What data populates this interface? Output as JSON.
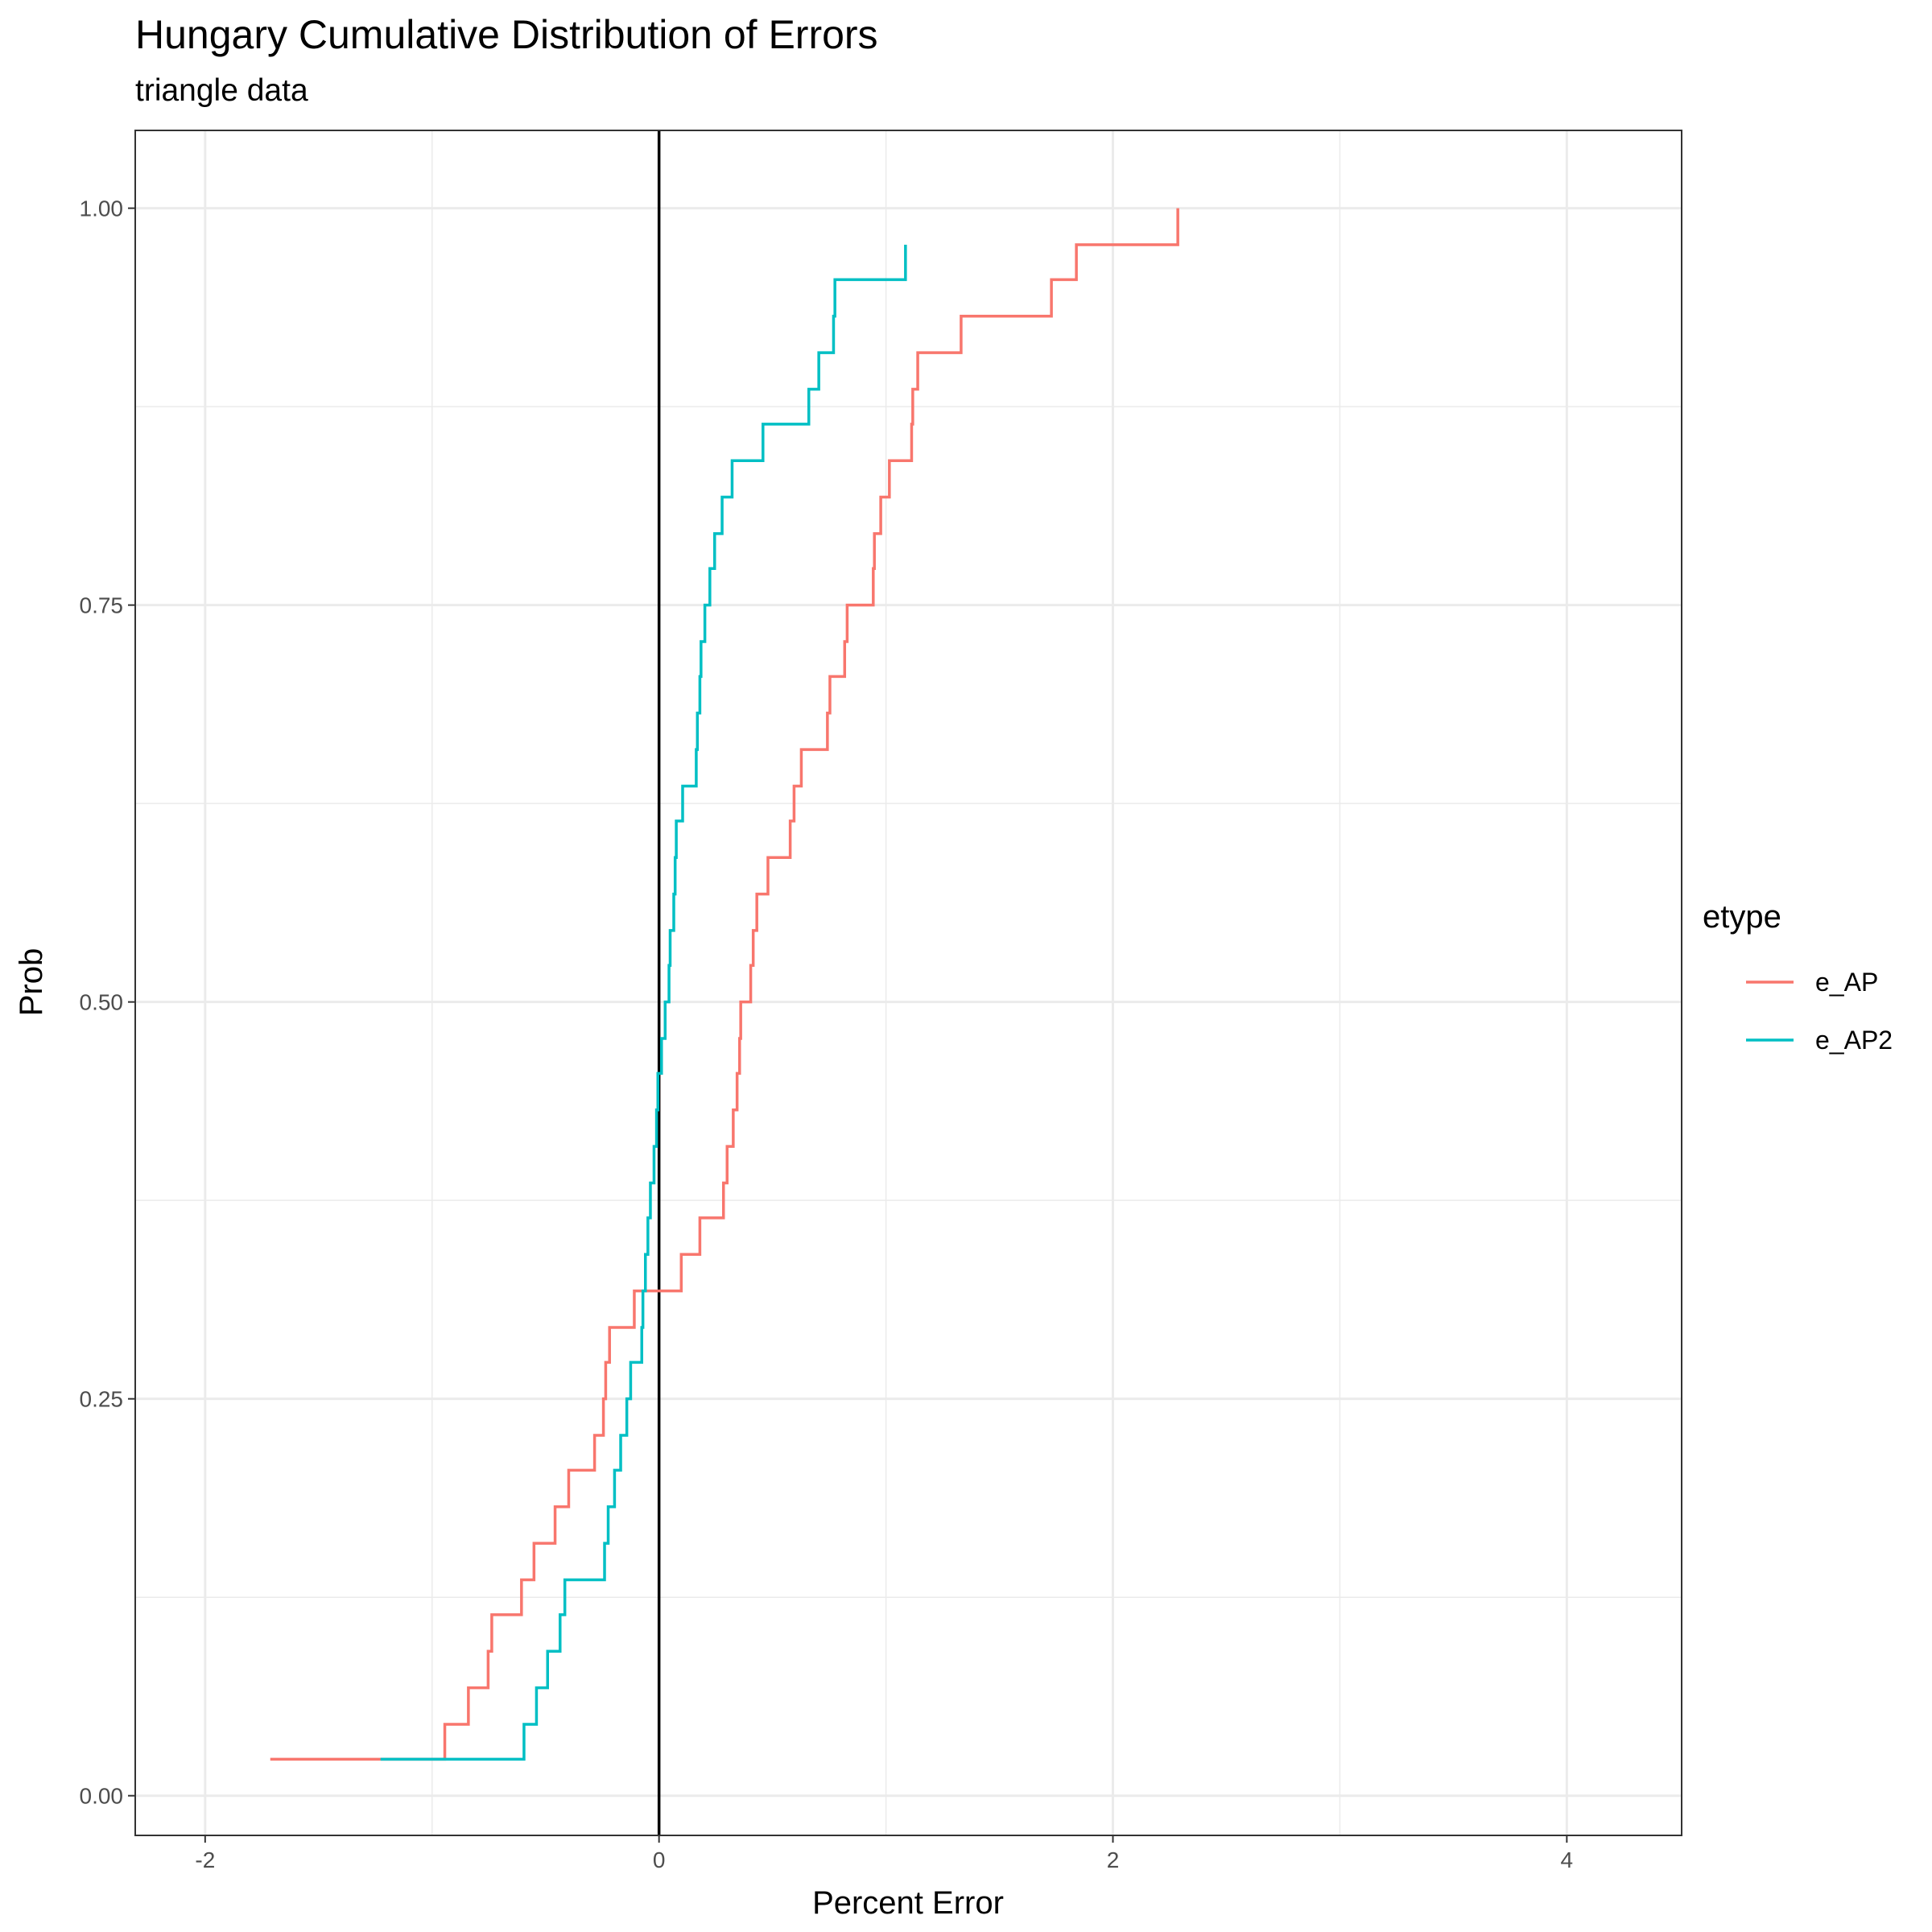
{
  "chart_data": {
    "type": "step",
    "title": "Hungary Cumulative Distribution of Errors",
    "subtitle": "triangle data",
    "x_label": "Percent Error",
    "y_label": "Prob",
    "legend_title": "etype",
    "legend_position": "right",
    "grid": true,
    "xintercept": 0,
    "xlim": [
      -2.308,
      4.506
    ],
    "ylim": [
      -0.025,
      1.049
    ],
    "xticks": [
      -2,
      0,
      2,
      4
    ],
    "yticks": [
      {
        "value": 0,
        "label": "0.00"
      },
      0.25,
      {
        "value": 0.5,
        "label": "0.50"
      },
      0.75,
      {
        "value": 1,
        "label": "1.00"
      }
    ],
    "series": [
      {
        "name": "e_AP",
        "color": "#F8766D",
        "x": [
          -1.713,
          -0.944,
          -0.84,
          -0.753,
          -0.737,
          -0.606,
          -0.551,
          -0.458,
          -0.398,
          -0.284,
          -0.245,
          -0.235,
          -0.218,
          -0.109,
          0.098,
          0.18,
          0.284,
          0.3,
          0.327,
          0.344,
          0.355,
          0.36,
          0.404,
          0.415,
          0.431,
          0.48,
          0.578,
          0.595,
          0.627,
          0.742,
          0.753,
          0.818,
          0.829,
          0.944,
          0.949,
          0.977,
          1.015,
          1.113,
          1.118,
          1.14,
          1.331,
          1.729,
          1.839,
          2.286
        ],
        "values": [
          0.023,
          0.045,
          0.068,
          0.091,
          0.114,
          0.136,
          0.159,
          0.182,
          0.205,
          0.227,
          0.25,
          0.273,
          0.295,
          0.318,
          0.341,
          0.364,
          0.386,
          0.409,
          0.432,
          0.455,
          0.477,
          0.5,
          0.523,
          0.545,
          0.568,
          0.591,
          0.614,
          0.636,
          0.659,
          0.682,
          0.705,
          0.727,
          0.75,
          0.773,
          0.795,
          0.818,
          0.841,
          0.864,
          0.886,
          0.909,
          0.932,
          0.955,
          0.977,
          1.0
        ]
      },
      {
        "name": "e_AP2",
        "color": "#00BFC4",
        "x": [
          -1.227,
          -0.595,
          -0.54,
          -0.491,
          -0.436,
          -0.415,
          -0.24,
          -0.224,
          -0.196,
          -0.169,
          -0.142,
          -0.125,
          -0.076,
          -0.071,
          -0.06,
          -0.049,
          -0.038,
          -0.022,
          -0.011,
          -0.005,
          0.011,
          0.027,
          0.044,
          0.049,
          0.065,
          0.071,
          0.076,
          0.104,
          0.164,
          0.169,
          0.18,
          0.185,
          0.202,
          0.224,
          0.245,
          0.278,
          0.322,
          0.458,
          0.66,
          0.704,
          0.769,
          0.775,
          1.086
        ],
        "values": [
          0.023,
          0.045,
          0.068,
          0.091,
          0.114,
          0.136,
          0.159,
          0.182,
          0.205,
          0.227,
          0.25,
          0.273,
          0.295,
          0.318,
          0.341,
          0.364,
          0.386,
          0.409,
          0.432,
          0.455,
          0.477,
          0.5,
          0.523,
          0.545,
          0.568,
          0.591,
          0.614,
          0.636,
          0.659,
          0.682,
          0.705,
          0.727,
          0.75,
          0.773,
          0.795,
          0.818,
          0.841,
          0.864,
          0.886,
          0.909,
          0.932,
          0.955,
          0.977
        ]
      }
    ]
  }
}
